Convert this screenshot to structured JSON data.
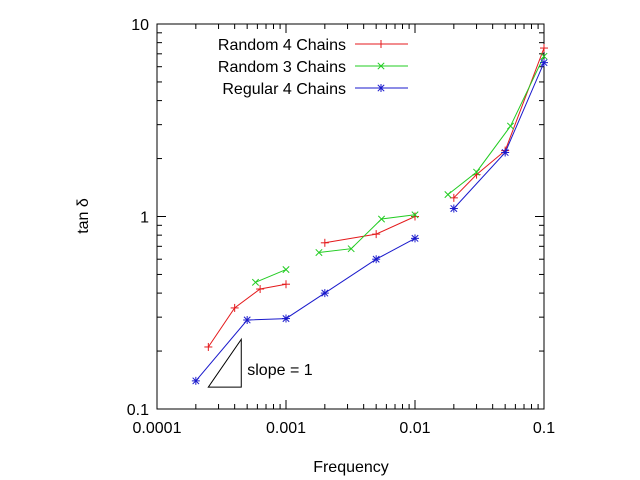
{
  "chart_data": {
    "type": "line",
    "title": "",
    "xlabel": "Frequency",
    "ylabel": "tan δ",
    "xscale": "log",
    "yscale": "log",
    "xlim": [
      0.0001,
      0.1
    ],
    "ylim": [
      0.1,
      10
    ],
    "x_ticks": [
      0.0001,
      0.001,
      0.01,
      0.1
    ],
    "x_tick_labels": [
      "0.0001",
      "0.001",
      "0.01",
      "0.1"
    ],
    "y_ticks": [
      0.1,
      1,
      10
    ],
    "y_tick_labels": [
      "0.1",
      "1",
      "10"
    ],
    "grid": false,
    "legend_position": "top-left",
    "series": [
      {
        "name": "Random 4 Chains",
        "color": "#e41a1c",
        "marker": "plus",
        "segments": [
          [
            [
              0.00025,
              0.21
            ],
            [
              0.0004,
              0.335
            ],
            [
              0.00063,
              0.42
            ],
            [
              0.001,
              0.445
            ]
          ],
          [
            [
              0.002,
              0.73
            ],
            [
              0.005,
              0.81
            ],
            [
              0.01,
              1.0
            ]
          ],
          [
            [
              0.02,
              1.25
            ],
            [
              0.03,
              1.65
            ],
            [
              0.05,
              2.2
            ],
            [
              0.1,
              7.5
            ]
          ]
        ]
      },
      {
        "name": "Random 3 Chains",
        "color": "#22cc22",
        "marker": "cross",
        "segments": [
          [
            [
              0.00058,
              0.455
            ],
            [
              0.001,
              0.53
            ]
          ],
          [
            [
              0.0018,
              0.65
            ],
            [
              0.0032,
              0.68
            ],
            [
              0.0055,
              0.97
            ],
            [
              0.01,
              1.02
            ]
          ],
          [
            [
              0.018,
              1.3
            ],
            [
              0.03,
              1.7
            ],
            [
              0.055,
              2.95
            ],
            [
              0.1,
              6.8
            ]
          ]
        ]
      },
      {
        "name": "Regular 4 Chains",
        "color": "#1a1acc",
        "marker": "star",
        "segments": [
          [
            [
              0.0002,
              0.14
            ],
            [
              0.0005,
              0.29
            ],
            [
              0.001,
              0.295
            ],
            [
              0.002,
              0.4
            ],
            [
              0.005,
              0.6
            ],
            [
              0.01,
              0.77
            ]
          ],
          [
            [
              0.02,
              1.1
            ],
            [
              0.05,
              2.15
            ],
            [
              0.1,
              6.3
            ]
          ]
        ]
      }
    ],
    "annotations": [
      {
        "type": "slope-triangle",
        "label": "slope = 1",
        "x_range": [
          0.00025,
          0.00045
        ],
        "y_range": [
          0.13,
          0.23
        ]
      }
    ]
  }
}
